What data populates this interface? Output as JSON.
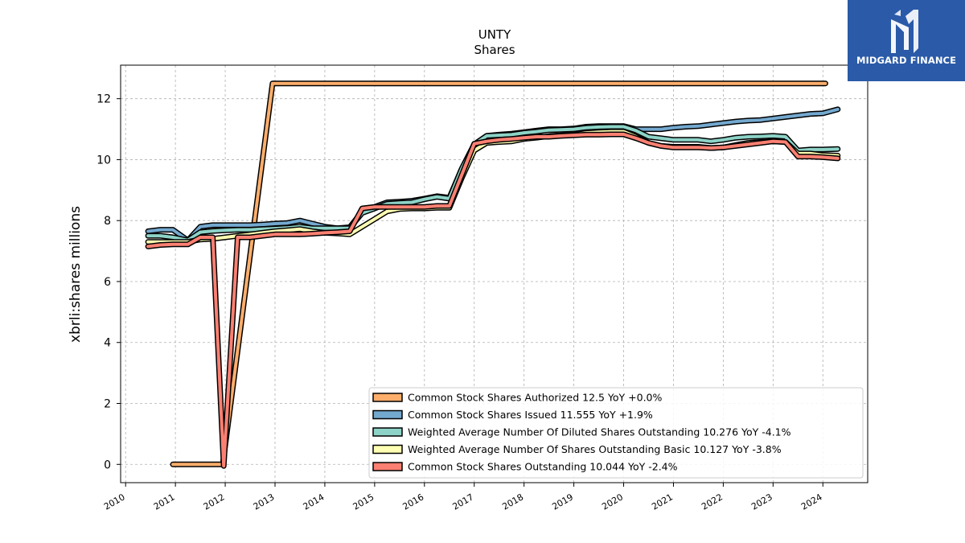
{
  "chart_data": {
    "type": "line",
    "title": "UNTY",
    "subtitle": "Shares",
    "ylabel": "xbrli:shares millions",
    "xlabel": "",
    "xlim": [
      2009.9,
      2024.9
    ],
    "ylim": [
      -0.6,
      13.1
    ],
    "yticks": [
      0,
      2,
      4,
      6,
      8,
      10,
      12
    ],
    "xticks": [
      2010,
      2011,
      2012,
      2013,
      2014,
      2015,
      2016,
      2017,
      2018,
      2019,
      2020,
      2021,
      2022,
      2023,
      2024
    ],
    "grid": true,
    "legend_position": "lower-right",
    "series": [
      {
        "name": "Common Stock Shares Authorized  12.5 YoY +0.0%",
        "color": "#fdae6b",
        "x": [
          2010.95,
          2011.95,
          2012.95,
          2024.05
        ],
        "y": [
          0.0,
          0.0,
          12.5,
          12.5
        ]
      },
      {
        "name": "Common Stock Shares Issued  11.555 YoY +1.9%",
        "color": "#74a9cf",
        "x": [
          2010.45,
          2010.7,
          2010.95,
          2011.25,
          2011.5,
          2011.75,
          2012.0,
          2012.25,
          2012.5,
          2012.75,
          2013.0,
          2013.25,
          2013.5,
          2013.75,
          2014.0,
          2014.25,
          2014.5,
          2014.75,
          2015.0,
          2015.25,
          2015.5,
          2015.75,
          2016.0,
          2016.25,
          2016.5,
          2016.75,
          2017.0,
          2017.25,
          2017.5,
          2017.75,
          2018.0,
          2018.25,
          2018.5,
          2018.75,
          2019.0,
          2019.25,
          2019.5,
          2019.75,
          2020.0,
          2020.25,
          2020.5,
          2020.75,
          2021.0,
          2021.25,
          2021.5,
          2021.75,
          2022.0,
          2022.25,
          2022.5,
          2022.75,
          2023.0,
          2023.25,
          2023.5,
          2023.75,
          2024.0,
          2024.3
        ],
        "y": [
          7.65,
          7.7,
          7.7,
          7.35,
          7.8,
          7.85,
          7.85,
          7.85,
          7.85,
          7.87,
          7.9,
          7.92,
          8.0,
          7.9,
          7.8,
          7.75,
          7.78,
          8.3,
          8.45,
          8.6,
          8.62,
          8.65,
          8.72,
          8.8,
          8.75,
          9.7,
          10.5,
          10.78,
          10.82,
          10.85,
          10.9,
          10.95,
          11.0,
          11.0,
          11.02,
          11.08,
          11.1,
          11.1,
          11.1,
          11.0,
          11.0,
          11.0,
          11.05,
          11.08,
          11.1,
          11.15,
          11.2,
          11.25,
          11.28,
          11.3,
          11.35,
          11.4,
          11.45,
          11.5,
          11.52,
          11.65
        ]
      },
      {
        "name": "Weighted Average Number Of Diluted Shares Outstanding  10.276 YoY -4.1%",
        "color": "#8dd3c7",
        "x": [
          2010.45,
          2010.7,
          2010.95,
          2011.25,
          2011.5,
          2011.75,
          2012.0,
          2012.25,
          2012.5,
          2012.75,
          2013.0,
          2013.25,
          2013.5,
          2013.75,
          2014.0,
          2014.25,
          2014.5,
          2014.75,
          2015.0,
          2015.25,
          2015.5,
          2015.75,
          2016.0,
          2016.25,
          2016.5,
          2016.75,
          2017.0,
          2017.25,
          2017.5,
          2017.75,
          2018.0,
          2018.25,
          2018.5,
          2018.75,
          2019.0,
          2019.25,
          2019.5,
          2019.75,
          2020.0,
          2020.25,
          2020.5,
          2020.75,
          2021.0,
          2021.25,
          2021.5,
          2021.75,
          2022.0,
          2022.25,
          2022.5,
          2022.75,
          2023.0,
          2023.25,
          2023.5,
          2023.75,
          2024.0,
          2024.3
        ],
        "y": [
          7.5,
          7.5,
          7.45,
          7.35,
          7.62,
          7.66,
          7.68,
          7.7,
          7.7,
          7.72,
          7.74,
          7.76,
          7.8,
          7.75,
          7.75,
          7.75,
          7.75,
          8.25,
          8.4,
          8.55,
          8.58,
          8.6,
          8.7,
          8.78,
          8.72,
          9.7,
          10.5,
          10.78,
          10.8,
          10.82,
          10.88,
          10.92,
          10.97,
          10.98,
          11.0,
          11.05,
          11.07,
          11.08,
          11.08,
          10.95,
          10.75,
          10.7,
          10.65,
          10.65,
          10.65,
          10.6,
          10.65,
          10.72,
          10.75,
          10.76,
          10.78,
          10.75,
          10.3,
          10.33,
          10.33,
          10.35
        ]
      },
      {
        "name": "Weighted Average Number Of Shares Outstanding Basic  10.127 YoY -3.8%",
        "color": "#ffffb3",
        "x": [
          2010.45,
          2010.7,
          2010.95,
          2011.25,
          2011.5,
          2011.75,
          2012.0,
          2012.25,
          2012.5,
          2012.75,
          2013.0,
          2013.25,
          2013.5,
          2013.75,
          2014.0,
          2014.25,
          2014.5,
          2014.75,
          2015.0,
          2015.25,
          2015.5,
          2015.75,
          2016.0,
          2016.25,
          2016.5,
          2016.75,
          2017.0,
          2017.25,
          2017.5,
          2017.75,
          2018.0,
          2018.25,
          2018.5,
          2018.75,
          2019.0,
          2019.25,
          2019.5,
          2019.75,
          2020.0,
          2020.25,
          2020.5,
          2020.75,
          2021.0,
          2021.25,
          2021.5,
          2021.75,
          2022.0,
          2022.25,
          2022.5,
          2022.75,
          2023.0,
          2023.25,
          2023.5,
          2023.75,
          2024.0,
          2024.3
        ],
        "y": [
          7.3,
          7.3,
          7.3,
          7.3,
          7.38,
          7.4,
          7.45,
          7.5,
          7.55,
          7.6,
          7.65,
          7.68,
          7.72,
          7.65,
          7.6,
          7.58,
          7.55,
          7.8,
          8.05,
          8.3,
          8.38,
          8.4,
          8.4,
          8.42,
          8.42,
          9.4,
          10.3,
          10.55,
          10.58,
          10.6,
          10.68,
          10.72,
          10.77,
          10.8,
          10.82,
          10.88,
          10.9,
          10.92,
          10.92,
          10.75,
          10.55,
          10.45,
          10.42,
          10.42,
          10.42,
          10.38,
          10.4,
          10.48,
          10.55,
          10.58,
          10.6,
          10.58,
          10.2,
          10.2,
          10.15,
          10.13
        ]
      },
      {
        "name": "Common Stock Shares Outstanding  10.044 YoY -2.4%",
        "color": "#fb8072",
        "x": [
          2010.45,
          2010.7,
          2010.95,
          2011.25,
          2011.5,
          2011.75,
          2011.97,
          2012.25,
          2012.5,
          2012.75,
          2013.0,
          2013.25,
          2013.5,
          2013.75,
          2014.0,
          2014.25,
          2014.5,
          2014.75,
          2015.0,
          2015.25,
          2015.5,
          2015.75,
          2016.0,
          2016.25,
          2016.5,
          2016.75,
          2017.0,
          2017.25,
          2017.5,
          2017.75,
          2018.0,
          2018.25,
          2018.5,
          2018.75,
          2019.0,
          2019.25,
          2019.5,
          2019.75,
          2020.0,
          2020.25,
          2020.5,
          2020.75,
          2021.0,
          2021.25,
          2021.5,
          2021.75,
          2022.0,
          2022.25,
          2022.5,
          2022.75,
          2023.0,
          2023.25,
          2023.5,
          2023.75,
          2024.0,
          2024.3
        ],
        "y": [
          7.15,
          7.2,
          7.22,
          7.22,
          7.45,
          7.45,
          -0.05,
          7.45,
          7.45,
          7.5,
          7.55,
          7.55,
          7.55,
          7.57,
          7.6,
          7.62,
          7.65,
          8.4,
          8.45,
          8.45,
          8.45,
          8.45,
          8.45,
          8.48,
          8.48,
          9.5,
          10.52,
          10.6,
          10.65,
          10.68,
          10.72,
          10.75,
          10.75,
          10.78,
          10.8,
          10.82,
          10.82,
          10.83,
          10.83,
          10.7,
          10.55,
          10.45,
          10.4,
          10.4,
          10.4,
          10.38,
          10.4,
          10.45,
          10.5,
          10.55,
          10.6,
          10.58,
          10.1,
          10.1,
          10.08,
          10.04
        ]
      }
    ]
  },
  "logo": {
    "text": "MIDGARD FINANCE",
    "bg_color": "#2a5aa8"
  }
}
